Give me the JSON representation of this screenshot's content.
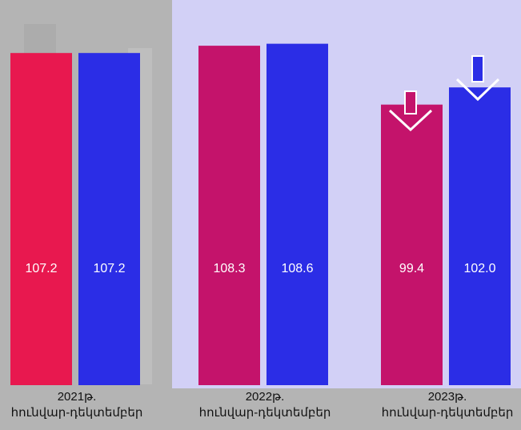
{
  "chart_data": {
    "type": "bar",
    "categories": [
      "2021թ.\nհունվար-դեկտեմբեր",
      "2022թ.\nհունվար-դեկտեմբեր",
      "2023թ.\nհունվար-դեկտեմբեր"
    ],
    "series": [
      {
        "colors": [
          "#e8184f",
          "#c4136b",
          "#c4136b"
        ],
        "values": [
          107.2,
          108.3,
          99.4
        ],
        "value_labels": [
          "107.2",
          "108.3",
          "99.4"
        ]
      },
      {
        "color": "#2b2de6",
        "values": [
          107.2,
          108.6,
          102.0
        ],
        "value_labels": [
          "107.2",
          "108.6",
          "102.0"
        ]
      }
    ],
    "ylim": [
      57,
      114
    ]
  }
}
